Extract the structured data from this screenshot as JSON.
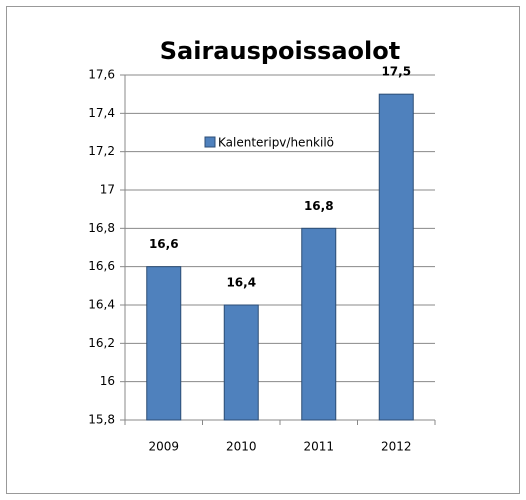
{
  "chart_data": {
    "type": "bar",
    "title": "Sairauspoissaolot",
    "categories": [
      "2009",
      "2010",
      "2011",
      "2012"
    ],
    "series": [
      {
        "name": "Kalenteripv/henkilö",
        "color": "#4f81bd",
        "values": [
          16.6,
          16.4,
          16.8,
          17.5
        ],
        "value_labels": [
          "16,6",
          "16,4",
          "16,8",
          "17,5"
        ]
      }
    ],
    "ylim": [
      15.8,
      17.6
    ],
    "yticks": [
      {
        "value": 15.8,
        "label": "15,8"
      },
      16,
      {
        "value": 16.2,
        "label": "16,2"
      },
      {
        "value": 16.4,
        "label": "16,4"
      },
      {
        "value": 16.6,
        "label": "16,6"
      },
      {
        "value": 16.8,
        "label": "16,8"
      },
      17,
      {
        "value": 17.2,
        "label": "17,2"
      },
      {
        "value": 17.4,
        "label": "17,4"
      },
      {
        "value": 17.6,
        "label": "17,6"
      }
    ],
    "grid": true,
    "legend": "top"
  }
}
